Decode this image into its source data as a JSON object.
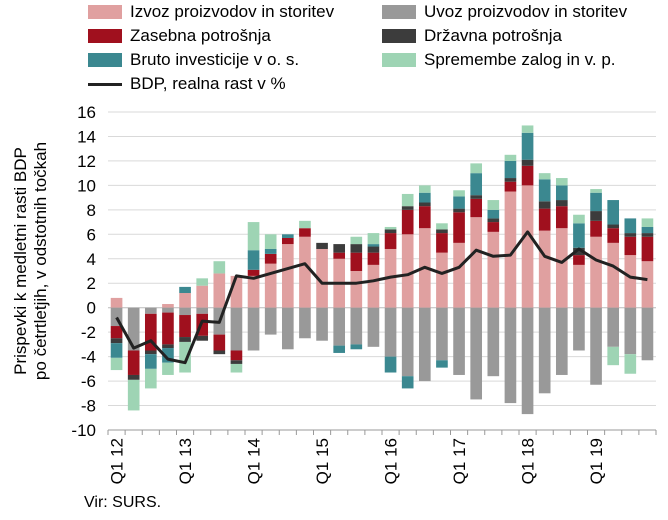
{
  "chart_data": {
    "type": "bar",
    "stacked": true,
    "ylabel": "Prispevki k medletni rasti BDP po četrtletjih, v odstotnih točkah",
    "ylim": [
      -10,
      16
    ],
    "yticks": [
      -10,
      -8,
      -6,
      -4,
      -2,
      0,
      2,
      4,
      6,
      8,
      10,
      12,
      14,
      16
    ],
    "categories": [
      "Q1 12",
      "Q2 12",
      "Q3 12",
      "Q4 12",
      "Q1 13",
      "Q2 13",
      "Q3 13",
      "Q4 13",
      "Q1 14",
      "Q2 14",
      "Q3 14",
      "Q4 14",
      "Q1 15",
      "Q2 15",
      "Q3 15",
      "Q4 15",
      "Q1 16",
      "Q2 16",
      "Q3 16",
      "Q4 16",
      "Q1 17",
      "Q2 17",
      "Q3 17",
      "Q4 17",
      "Q1 18",
      "Q2 18",
      "Q3 18",
      "Q4 18",
      "Q1 19",
      "Q2 19",
      "Q3 19",
      "Q4 19"
    ],
    "x_tick_labels": [
      "Q1 12",
      "Q1 13",
      "Q1 14",
      "Q1 15",
      "Q1 16",
      "Q1 17",
      "Q1 18",
      "Q1 19"
    ],
    "grid": "horizontal",
    "legend_position": "top",
    "series": [
      {
        "name": "Izvoz proizvodov in storitev",
        "color": "#e0a0a0",
        "type": "bar",
        "values": [
          0.8,
          0,
          0,
          0.3,
          1.2,
          1.8,
          2.8,
          2.6,
          2.6,
          3.6,
          5.2,
          5.8,
          4.8,
          4.0,
          3.0,
          3.5,
          4.8,
          6.0,
          6.5,
          4.5,
          5.3,
          7.4,
          6.2,
          9.5,
          10.0,
          6.3,
          6.5,
          3.5,
          5.8,
          5.3,
          4.3,
          3.8
        ]
      },
      {
        "name": "Uvoz proizvodov in storitev",
        "color": "#999999",
        "type": "bar",
        "values": [
          -1.5,
          -3.5,
          -0.5,
          -0.4,
          -0.6,
          -0.5,
          -2.2,
          -3.5,
          -3.5,
          -2.2,
          -3.4,
          -2.5,
          -2.7,
          -3.1,
          -3.0,
          -3.2,
          -4.0,
          -5.6,
          -6.0,
          -4.3,
          -5.5,
          -7.5,
          -5.6,
          -7.8,
          -8.7,
          -7.0,
          -5.5,
          -3.5,
          -6.3,
          -3.2,
          -3.8,
          -4.3
        ]
      },
      {
        "name": "Zasebna potrošnja",
        "color": "#a0101e",
        "type": "bar",
        "values": [
          -1.0,
          -2.0,
          -3.0,
          -2.6,
          -1.8,
          -1.8,
          -1.3,
          -0.8,
          0.5,
          0.8,
          0.5,
          0.7,
          0,
          0.5,
          1.5,
          1.0,
          1.3,
          2.0,
          1.8,
          1.6,
          2.5,
          1.5,
          0.8,
          0.8,
          1.6,
          1.8,
          1.8,
          0.8,
          1.3,
          1.2,
          1.5,
          2.0
        ]
      },
      {
        "name": "Državna potrošnja",
        "color": "#3c3c3c",
        "type": "bar",
        "values": [
          -0.4,
          -0.4,
          -0.3,
          -0.3,
          -0.4,
          -0.4,
          -0.3,
          -0.3,
          0,
          0,
          0,
          0,
          0.5,
          0.7,
          0.7,
          0.5,
          0.3,
          0.3,
          0.3,
          0.3,
          0.3,
          0.3,
          0.3,
          0.3,
          0.5,
          0.6,
          0.5,
          0.6,
          0.8,
          0.3,
          0.3,
          0.3
        ]
      },
      {
        "name": "Bruto investicije v o. s.",
        "color": "#3b8890",
        "type": "bar",
        "values": [
          -1.2,
          0,
          -1.2,
          -1.2,
          0.5,
          0,
          0,
          0,
          1.6,
          0.4,
          0.3,
          0,
          0,
          -0.6,
          -0.4,
          0.2,
          -1.3,
          -1.0,
          0.8,
          -0.6,
          1.0,
          1.8,
          0.7,
          1.4,
          2.2,
          1.8,
          1.2,
          2.0,
          1.5,
          2.0,
          1.2,
          0.5
        ]
      },
      {
        "name": "Spremembe zalog in v. p.",
        "color": "#9ed4b4",
        "type": "bar",
        "values": [
          -1.0,
          -2.5,
          -1.6,
          -1.0,
          -2.5,
          0.6,
          1.0,
          -0.7,
          2.3,
          1.2,
          0,
          0.6,
          0,
          0,
          0.6,
          0.9,
          0.2,
          1.0,
          0.6,
          0.5,
          0.5,
          0.8,
          0.8,
          0.5,
          0.6,
          0.5,
          0.6,
          0.7,
          0.3,
          -1.5,
          -1.6,
          0.7
        ]
      },
      {
        "name": "BDP, realna rast v %",
        "color": "#222222",
        "type": "line",
        "values": [
          -0.8,
          -3.3,
          -2.7,
          -4.2,
          -4.5,
          -1.1,
          -1.2,
          2.6,
          2.4,
          2.8,
          3.2,
          3.6,
          2.0,
          2.0,
          2.0,
          2.2,
          2.5,
          2.7,
          3.3,
          2.8,
          3.3,
          4.7,
          4.2,
          4.3,
          6.2,
          4.2,
          3.7,
          4.8,
          3.9,
          3.4,
          2.5,
          2.3
        ]
      }
    ]
  },
  "source_text": "Vir: SURS."
}
